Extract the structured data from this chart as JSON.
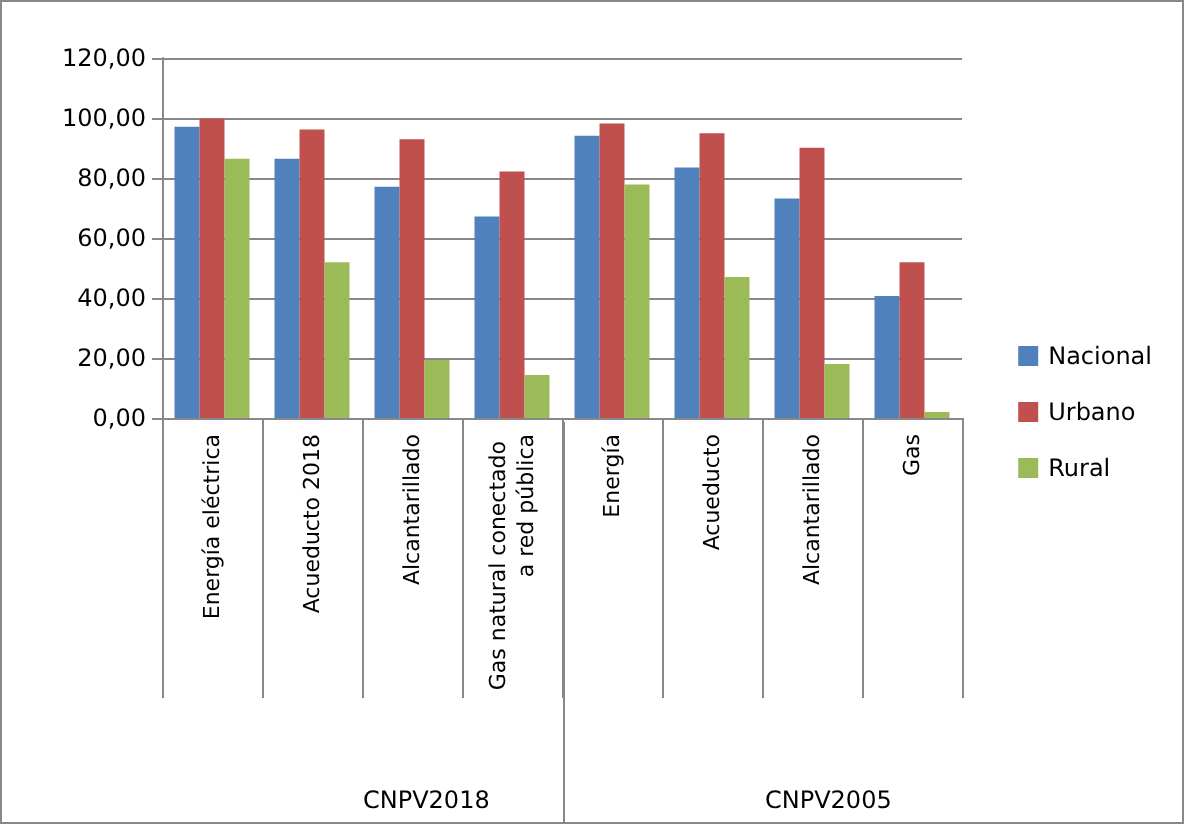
{
  "chart_data": {
    "type": "bar",
    "categories": [
      "Energía eléctrica",
      "Acueducto 2018",
      "Alcantarillado",
      "Gas natural conectado a red pública",
      "Energía",
      "Acueducto",
      "Alcantarillado",
      "Gas"
    ],
    "series": [
      {
        "name": "Nacional",
        "color": "#4f81bd",
        "values": [
          97.1,
          86.4,
          77.1,
          67.2,
          94.1,
          83.5,
          73.2,
          40.7
        ]
      },
      {
        "name": "Urbano",
        "color": "#c0504d",
        "values": [
          99.8,
          96.2,
          92.9,
          82.2,
          98.2,
          94.9,
          90.1,
          51.9
        ]
      },
      {
        "name": "Rural",
        "color": "#9bbb59",
        "values": [
          86.4,
          51.9,
          19.3,
          14.3,
          77.8,
          47.0,
          18.0,
          2.0
        ]
      }
    ],
    "annotations": [
      "CNPV2018",
      "CNPV2005"
    ],
    "ylim": [
      0,
      120
    ],
    "yticks": [
      {
        "value": 0,
        "label": "0,00"
      },
      {
        "value": 20,
        "label": "20,00"
      },
      {
        "value": 40,
        "label": "40,00"
      },
      {
        "value": 60,
        "label": "60,00"
      },
      {
        "value": 80,
        "label": "80,00"
      },
      {
        "value": 100,
        "label": "100,00"
      },
      {
        "value": 120,
        "label": "120,00"
      }
    ],
    "grid": "y",
    "legend": "right"
  }
}
